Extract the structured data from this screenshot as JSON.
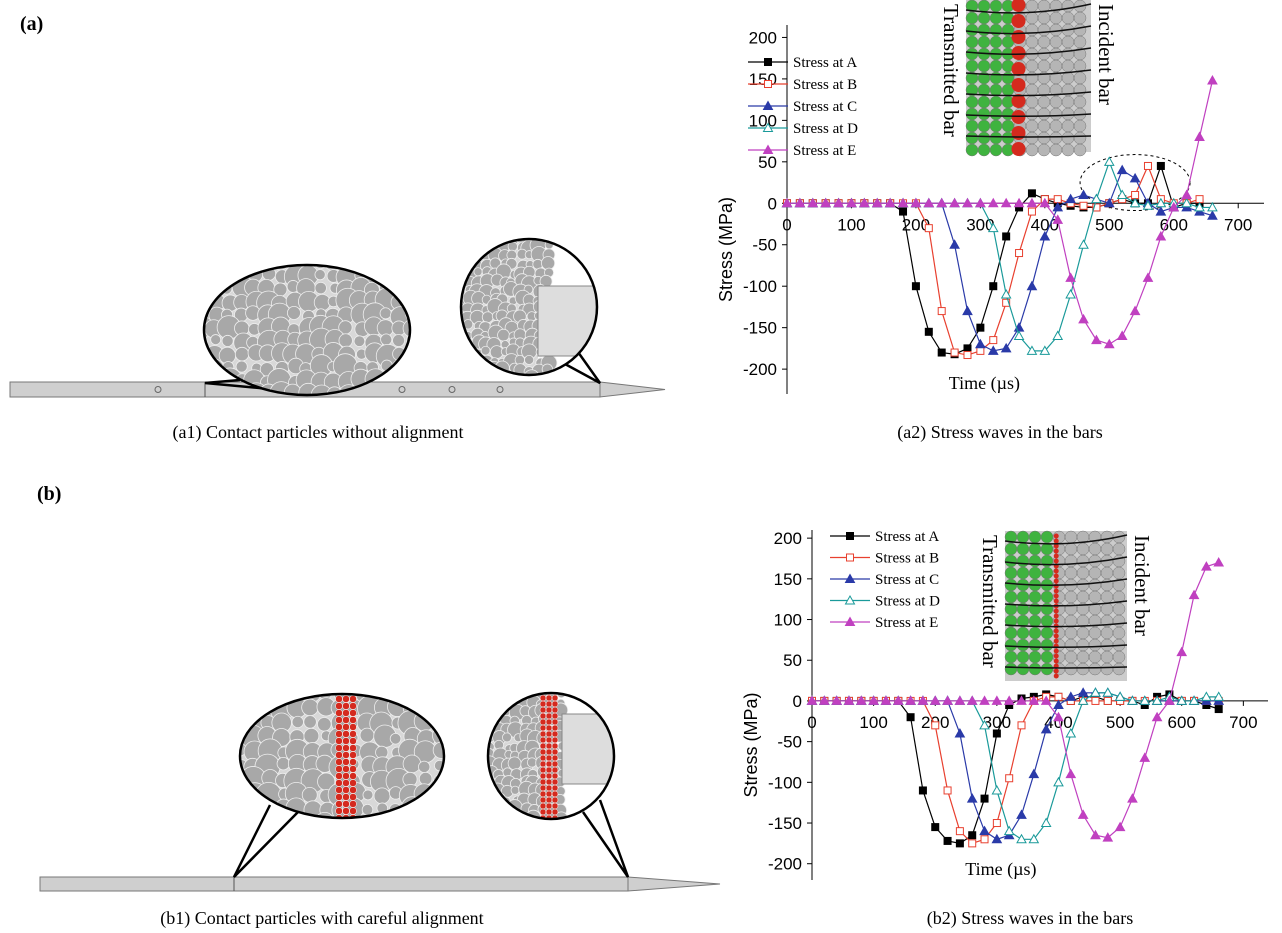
{
  "panel_labels": [
    "(a)",
    "(b)"
  ],
  "captions": [
    "(a1) Contact particles without alignment",
    "(a2) Stress waves in the bars",
    "(b1) Contact particles with careful alignment",
    "(b2) Stress waves in the bars"
  ],
  "chart_data": [
    {
      "type": "line",
      "x_label": "Time (µs)",
      "y_label": "Stress (MPa)",
      "annotations": [
        "Transmitted bar",
        "Incident bar"
      ],
      "x": [
        0,
        20,
        40,
        60,
        80,
        100,
        120,
        140,
        160,
        180,
        200,
        220,
        240,
        260,
        280,
        300,
        320,
        340,
        360,
        380,
        400,
        420,
        440,
        460,
        480,
        500,
        520,
        540,
        560,
        580,
        600,
        620,
        640,
        660
      ],
      "xlim": [
        0,
        740
      ],
      "ylim": [
        -230,
        215
      ],
      "xticks": [
        0,
        100,
        200,
        300,
        400,
        500,
        600,
        700
      ],
      "yticks": [
        -200,
        -150,
        -100,
        -50,
        0,
        50,
        100,
        150,
        200
      ],
      "series": [
        {
          "name": "Stress at A",
          "color": "#000000",
          "marker": "square",
          "filled": true,
          "values": [
            0,
            0,
            0,
            0,
            0,
            0,
            0,
            0,
            0,
            -10,
            -100,
            -155,
            -180,
            -182,
            -175,
            -150,
            -100,
            -40,
            -5,
            12,
            5,
            0,
            -3,
            -5,
            -5,
            0,
            5,
            0,
            0,
            45,
            -5,
            0,
            0,
            null
          ]
        },
        {
          "name": "Stress at B",
          "color": "#e8402f",
          "marker": "square",
          "filled": false,
          "values": [
            0,
            0,
            0,
            0,
            0,
            0,
            0,
            0,
            0,
            0,
            0,
            -30,
            -130,
            -180,
            -183,
            -178,
            -165,
            -120,
            -60,
            -10,
            5,
            5,
            0,
            -3,
            -5,
            0,
            5,
            10,
            45,
            5,
            0,
            0,
            5,
            null
          ]
        },
        {
          "name": "Stress at C",
          "color": "#2a3aa8",
          "marker": "triangle",
          "filled": true,
          "values": [
            0,
            0,
            0,
            0,
            0,
            0,
            0,
            0,
            0,
            0,
            0,
            0,
            0,
            -50,
            -130,
            -170,
            -178,
            -175,
            -150,
            -100,
            -40,
            -5,
            5,
            10,
            5,
            0,
            40,
            30,
            0,
            -10,
            -5,
            -5,
            -10,
            -15
          ]
        },
        {
          "name": "Stress at D",
          "color": "#1a9a9a",
          "marker": "triangle",
          "filled": false,
          "values": [
            0,
            0,
            0,
            0,
            0,
            0,
            0,
            0,
            0,
            0,
            0,
            0,
            0,
            0,
            0,
            0,
            -30,
            -110,
            -160,
            -178,
            -178,
            -160,
            -110,
            -50,
            5,
            50,
            10,
            0,
            -3,
            0,
            0,
            0,
            -5,
            -5
          ]
        },
        {
          "name": "Stress at E",
          "color": "#c040c0",
          "marker": "triangle",
          "filled": true,
          "values": [
            0,
            0,
            0,
            0,
            0,
            0,
            0,
            0,
            0,
            0,
            0,
            0,
            0,
            0,
            0,
            0,
            0,
            0,
            0,
            0,
            0,
            -20,
            -90,
            -140,
            -165,
            -170,
            -160,
            -130,
            -90,
            -40,
            -5,
            10,
            80,
            148
          ]
        }
      ]
    },
    {
      "type": "line",
      "x_label": "Time (µs)",
      "y_label": "Stress (MPa)",
      "annotations": [
        "Transmitted bar",
        "Incident bar"
      ],
      "x": [
        0,
        20,
        40,
        60,
        80,
        100,
        120,
        140,
        160,
        180,
        200,
        220,
        240,
        260,
        280,
        300,
        320,
        340,
        360,
        380,
        400,
        420,
        440,
        460,
        480,
        500,
        520,
        540,
        560,
        580,
        600,
        620,
        640,
        660
      ],
      "xlim": [
        0,
        740
      ],
      "ylim": [
        -220,
        210
      ],
      "xticks": [
        0,
        100,
        200,
        300,
        400,
        500,
        600,
        700
      ],
      "yticks": [
        -200,
        -150,
        -100,
        -50,
        0,
        50,
        100,
        150,
        200
      ],
      "series": [
        {
          "name": "Stress at A",
          "color": "#000000",
          "marker": "square",
          "filled": true,
          "values": [
            0,
            0,
            0,
            0,
            0,
            0,
            0,
            0,
            -20,
            -110,
            -155,
            -172,
            -175,
            -165,
            -120,
            -40,
            -5,
            3,
            5,
            8,
            5,
            0,
            5,
            5,
            0,
            0,
            0,
            -5,
            5,
            8,
            0,
            0,
            -5,
            -10
          ]
        },
        {
          "name": "Stress at B",
          "color": "#e8402f",
          "marker": "square",
          "filled": false,
          "values": [
            0,
            0,
            0,
            0,
            0,
            0,
            0,
            0,
            0,
            0,
            -30,
            -110,
            -160,
            -175,
            -170,
            -150,
            -95,
            -30,
            0,
            5,
            5,
            0,
            0,
            0,
            0,
            0,
            0,
            0,
            0,
            0,
            0,
            0,
            0,
            0
          ]
        },
        {
          "name": "Stress at C",
          "color": "#2a3aa8",
          "marker": "triangle",
          "filled": true,
          "values": [
            0,
            0,
            0,
            0,
            0,
            0,
            0,
            0,
            0,
            0,
            0,
            0,
            -40,
            -120,
            -160,
            -170,
            -165,
            -140,
            -90,
            -35,
            -5,
            5,
            10,
            10,
            10,
            5,
            0,
            0,
            0,
            0,
            0,
            0,
            0,
            0
          ]
        },
        {
          "name": "Stress at D",
          "color": "#1a9a9a",
          "marker": "triangle",
          "filled": false,
          "values": [
            0,
            0,
            0,
            0,
            0,
            0,
            0,
            0,
            0,
            0,
            0,
            0,
            0,
            0,
            -30,
            -110,
            -160,
            -170,
            -170,
            -150,
            -100,
            -40,
            0,
            10,
            10,
            5,
            0,
            0,
            0,
            5,
            0,
            0,
            5,
            5
          ]
        },
        {
          "name": "Stress at E",
          "color": "#c040c0",
          "marker": "triangle",
          "filled": true,
          "values": [
            0,
            0,
            0,
            0,
            0,
            0,
            0,
            0,
            0,
            0,
            0,
            0,
            0,
            0,
            0,
            0,
            0,
            0,
            0,
            0,
            -20,
            -90,
            -140,
            -165,
            -168,
            -155,
            -120,
            -70,
            -20,
            0,
            60,
            130,
            165,
            170
          ]
        }
      ]
    }
  ]
}
